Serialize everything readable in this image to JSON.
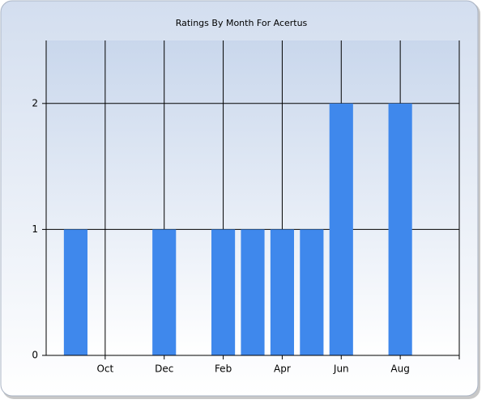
{
  "chart_data": {
    "type": "bar",
    "title": "Ratings By Month For Acertus",
    "categories": [
      null,
      "Oct",
      null,
      "Dec",
      null,
      "Feb",
      null,
      "Apr",
      null,
      "Jun",
      null,
      "Aug"
    ],
    "values": [
      1,
      0,
      0,
      1,
      0,
      1,
      1,
      1,
      1,
      2,
      0,
      2
    ],
    "color": "#3f88ec",
    "ylim": [
      0,
      2.5
    ],
    "yticks": [
      0,
      1,
      2
    ],
    "grid": true
  }
}
